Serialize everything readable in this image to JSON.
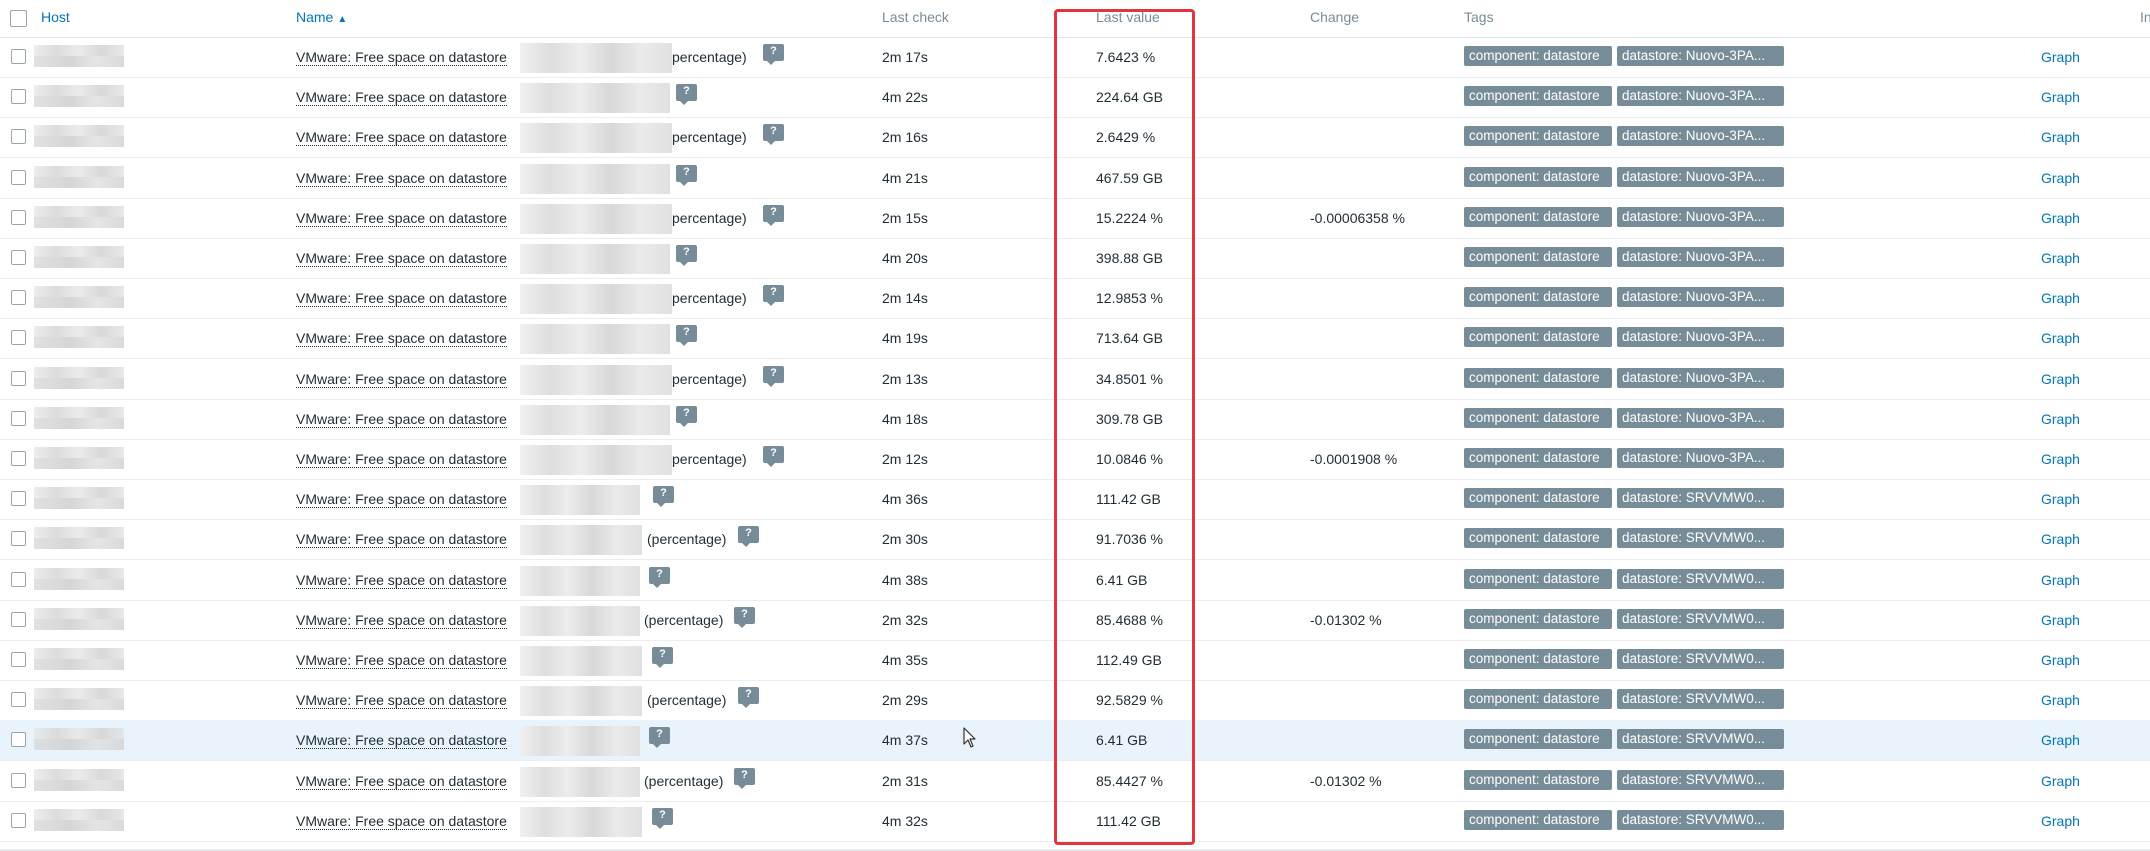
{
  "header": {
    "host": "Host",
    "name": "Name",
    "sort_indicator": "▲",
    "last_check": "Last check",
    "last_value": "Last value",
    "change": "Change",
    "tags": "Tags",
    "info_partial": "In"
  },
  "colors": {
    "link": "#0275b8",
    "tag_bg": "#768d99",
    "highlight_border": "#e0353f",
    "row_hover": "#e9f3fb"
  },
  "icons": {
    "help": "question-mark-icon",
    "sort": "sort-ascending-icon",
    "cursor": "mouse-pointer-icon"
  },
  "rows": [
    {
      "name": "VMware: Free space on datastore",
      "suffix": "percentage)",
      "last_check": "2m 17s",
      "last_value": "7.6423 %",
      "change": "",
      "tag1": "component: datastore",
      "tag2": "datastore: Nuovo-3PA...",
      "graph": "Graph"
    },
    {
      "name": "VMware: Free space on datastore",
      "suffix": "",
      "last_check": "4m 22s",
      "last_value": "224.64 GB",
      "change": "",
      "tag1": "component: datastore",
      "tag2": "datastore: Nuovo-3PA...",
      "graph": "Graph"
    },
    {
      "name": "VMware: Free space on datastore",
      "suffix": "percentage)",
      "last_check": "2m 16s",
      "last_value": "2.6429 %",
      "change": "",
      "tag1": "component: datastore",
      "tag2": "datastore: Nuovo-3PA...",
      "graph": "Graph"
    },
    {
      "name": "VMware: Free space on datastore",
      "suffix": "",
      "last_check": "4m 21s",
      "last_value": "467.59 GB",
      "change": "",
      "tag1": "component: datastore",
      "tag2": "datastore: Nuovo-3PA...",
      "graph": "Graph"
    },
    {
      "name": "VMware: Free space on datastore",
      "suffix": "percentage)",
      "last_check": "2m 15s",
      "last_value": "15.2224 %",
      "change": "-0.00006358 %",
      "tag1": "component: datastore",
      "tag2": "datastore: Nuovo-3PA...",
      "graph": "Graph"
    },
    {
      "name": "VMware: Free space on datastore",
      "suffix": "",
      "last_check": "4m 20s",
      "last_value": "398.88 GB",
      "change": "",
      "tag1": "component: datastore",
      "tag2": "datastore: Nuovo-3PA...",
      "graph": "Graph"
    },
    {
      "name": "VMware: Free space on datastore",
      "suffix": "percentage)",
      "last_check": "2m 14s",
      "last_value": "12.9853 %",
      "change": "",
      "tag1": "component: datastore",
      "tag2": "datastore: Nuovo-3PA...",
      "graph": "Graph"
    },
    {
      "name": "VMware: Free space on datastore",
      "suffix": "",
      "last_check": "4m 19s",
      "last_value": "713.64 GB",
      "change": "",
      "tag1": "component: datastore",
      "tag2": "datastore: Nuovo-3PA...",
      "graph": "Graph"
    },
    {
      "name": "VMware: Free space on datastore",
      "suffix": "percentage)",
      "last_check": "2m 13s",
      "last_value": "34.8501 %",
      "change": "",
      "tag1": "component: datastore",
      "tag2": "datastore: Nuovo-3PA...",
      "graph": "Graph"
    },
    {
      "name": "VMware: Free space on datastore",
      "suffix": "",
      "last_check": "4m 18s",
      "last_value": "309.78 GB",
      "change": "",
      "tag1": "component: datastore",
      "tag2": "datastore: Nuovo-3PA...",
      "graph": "Graph"
    },
    {
      "name": "VMware: Free space on datastore",
      "suffix": "percentage)",
      "last_check": "2m 12s",
      "last_value": "10.0846 %",
      "change": "-0.0001908 %",
      "tag1": "component: datastore",
      "tag2": "datastore: Nuovo-3PA...",
      "graph": "Graph"
    },
    {
      "name": "VMware: Free space on datastore",
      "suffix": "",
      "last_check": "4m 36s",
      "last_value": "111.42 GB",
      "change": "",
      "tag1": "component: datastore",
      "tag2": "datastore: SRVVMW0...",
      "graph": "Graph"
    },
    {
      "name": "VMware: Free space on datastore",
      "suffix": "(percentage)",
      "last_check": "2m 30s",
      "last_value": "91.7036 %",
      "change": "",
      "tag1": "component: datastore",
      "tag2": "datastore: SRVVMW0...",
      "graph": "Graph"
    },
    {
      "name": "VMware: Free space on datastore",
      "suffix": "",
      "last_check": "4m 38s",
      "last_value": "6.41 GB",
      "change": "",
      "tag1": "component: datastore",
      "tag2": "datastore: SRVVMW0...",
      "graph": "Graph"
    },
    {
      "name": "VMware: Free space on datastore",
      "suffix": "(percentage)",
      "last_check": "2m 32s",
      "last_value": "85.4688 %",
      "change": "-0.01302 %",
      "tag1": "component: datastore",
      "tag2": "datastore: SRVVMW0...",
      "graph": "Graph"
    },
    {
      "name": "VMware: Free space on datastore",
      "suffix": "",
      "last_check": "4m 35s",
      "last_value": "112.49 GB",
      "change": "",
      "tag1": "component: datastore",
      "tag2": "datastore: SRVVMW0...",
      "graph": "Graph"
    },
    {
      "name": "VMware: Free space on datastore",
      "suffix": "(percentage)",
      "last_check": "2m 29s",
      "last_value": "92.5829 %",
      "change": "",
      "tag1": "component: datastore",
      "tag2": "datastore: SRVVMW0...",
      "graph": "Graph"
    },
    {
      "name": "VMware: Free space on datastore",
      "suffix": "",
      "last_check": "4m 37s",
      "last_value": "6.41 GB",
      "change": "",
      "tag1": "component: datastore",
      "tag2": "datastore: SRVVMW0...",
      "graph": "Graph"
    },
    {
      "name": "VMware: Free space on datastore",
      "suffix": "(percentage)",
      "last_check": "2m 31s",
      "last_value": "85.4427 %",
      "change": "-0.01302 %",
      "tag1": "component: datastore",
      "tag2": "datastore: SRVVMW0...",
      "graph": "Graph"
    },
    {
      "name": "VMware: Free space on datastore",
      "suffix": "",
      "last_check": "4m 32s",
      "last_value": "111.42 GB",
      "change": "",
      "tag1": "component: datastore",
      "tag2": "datastore: SRVVMW0...",
      "graph": "Graph"
    }
  ]
}
